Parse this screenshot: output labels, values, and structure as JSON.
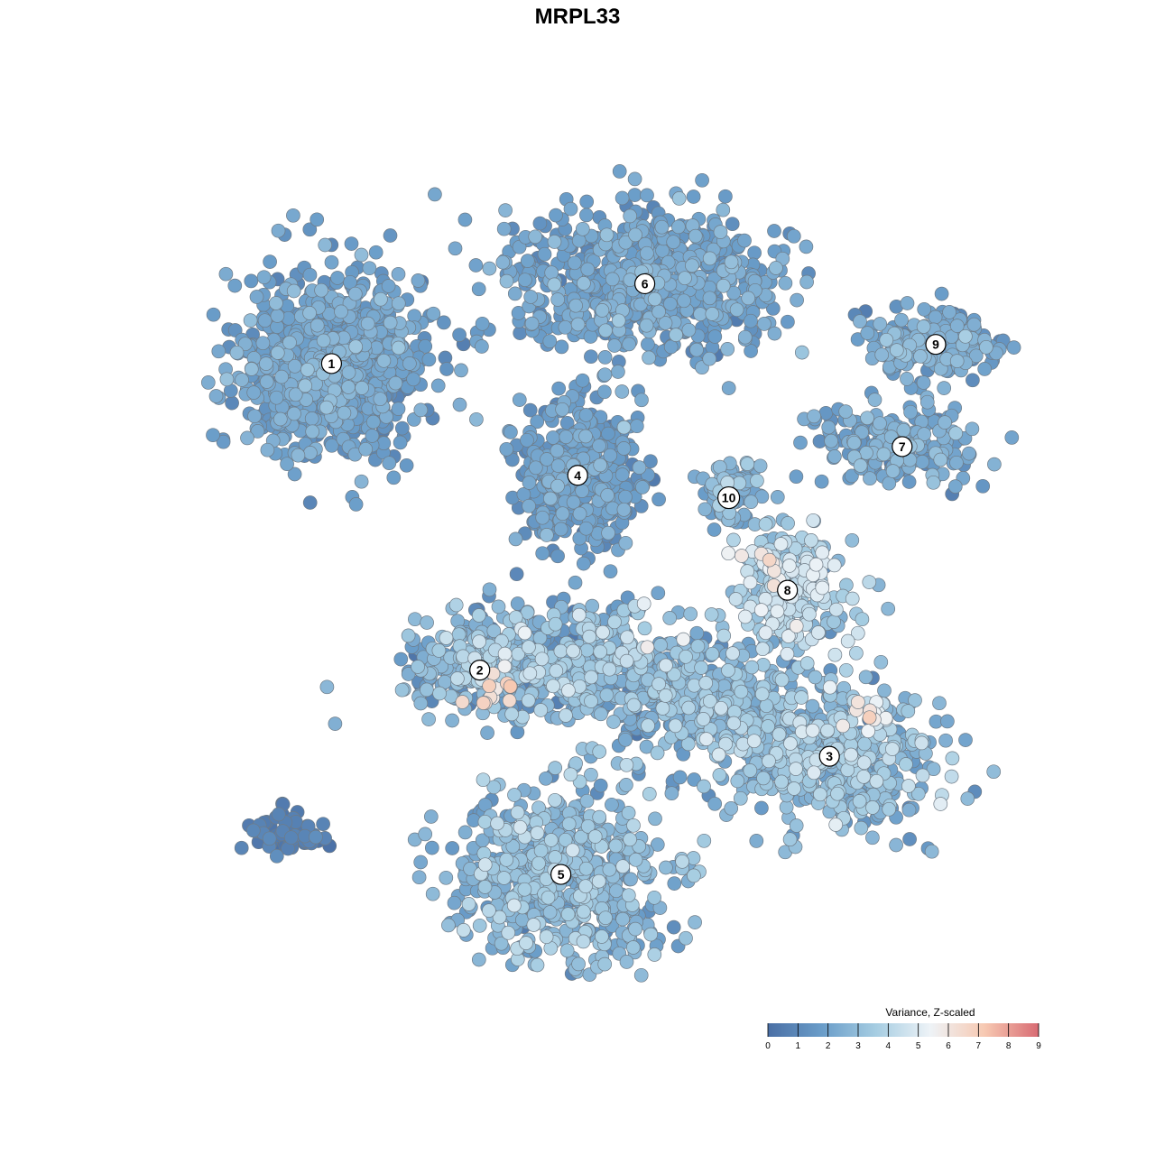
{
  "chart_data": {
    "type": "scatter",
    "title": "MRPL33",
    "xlabel": "",
    "ylabel": "",
    "grid": false,
    "legend_position": "bottom-right",
    "color_scale": {
      "title": "Variance, Z-scaled",
      "min": 0,
      "max": 9,
      "ticks": [
        "0",
        "1",
        "2",
        "3",
        "4",
        "5",
        "6",
        "7",
        "8",
        "9"
      ],
      "colors": [
        "#4a6fa5",
        "#6a9dc9",
        "#a6cde2",
        "#eef3f7",
        "#f7c9b2",
        "#d86b73"
      ]
    },
    "clusters": [
      {
        "label": "1",
        "x": -9.6,
        "y": 5.2,
        "sx": 2.6,
        "sy": 2.4,
        "n": 950,
        "mean": 1.8,
        "sd": 0.55,
        "highs": []
      },
      {
        "label": "2",
        "x": -4.3,
        "y": -4.4,
        "sx": 2.2,
        "sy": 1.0,
        "n": 230,
        "mean": 2.6,
        "sd": 0.9,
        "highs": [
          [
            -3.8,
            -5.1,
            6.5,
            12
          ]
        ]
      },
      {
        "label": "3",
        "x": 8.2,
        "y": -7.1,
        "sx": 3.1,
        "sy": 1.9,
        "n": 520,
        "mean": 2.8,
        "sd": 0.9,
        "highs": [
          [
            9.5,
            -5.8,
            5.6,
            14
          ]
        ]
      },
      {
        "label": "4",
        "x": -0.8,
        "y": 1.7,
        "sx": 1.9,
        "sy": 1.8,
        "n": 420,
        "mean": 1.7,
        "sd": 0.5,
        "highs": []
      },
      {
        "label": "5",
        "x": -1.4,
        "y": -10.8,
        "sx": 3.1,
        "sy": 2.2,
        "n": 650,
        "mean": 2.7,
        "sd": 0.75,
        "highs": []
      },
      {
        "label": "6",
        "x": 1.6,
        "y": 7.7,
        "sx": 4.2,
        "sy": 1.9,
        "n": 680,
        "mean": 1.9,
        "sd": 0.55,
        "highs": []
      },
      {
        "label": "7",
        "x": 10.8,
        "y": 2.6,
        "sx": 2.4,
        "sy": 1.0,
        "n": 230,
        "mean": 2.0,
        "sd": 0.6,
        "highs": []
      },
      {
        "label": "8",
        "x": 6.7,
        "y": -1.9,
        "sx": 1.7,
        "sy": 1.6,
        "n": 240,
        "mean": 3.6,
        "sd": 0.9,
        "highs": [
          [
            6.0,
            -1.2,
            5.8,
            10
          ]
        ]
      },
      {
        "label": "9",
        "x": 12.0,
        "y": 5.8,
        "sx": 2.2,
        "sy": 0.9,
        "n": 200,
        "mean": 2.0,
        "sd": 0.6,
        "highs": []
      },
      {
        "label": "10",
        "x": 4.6,
        "y": 1.0,
        "sx": 0.8,
        "sy": 1.1,
        "n": 90,
        "mean": 2.3,
        "sd": 0.6,
        "highs": []
      }
    ],
    "outlier_groups": [
      {
        "x": -11.2,
        "y": -9.5,
        "sx": 1.2,
        "sy": 0.5,
        "n": 60,
        "mean": 0.5,
        "sd": 0.3
      },
      {
        "x": -1.2,
        "y": -4.0,
        "sx": 3.5,
        "sy": 1.6,
        "n": 400,
        "mean": 2.6,
        "sd": 1.0
      },
      {
        "x": 3.4,
        "y": -5.4,
        "sx": 3.2,
        "sy": 1.6,
        "n": 420,
        "mean": 2.5,
        "sd": 0.9
      }
    ],
    "x_range": [
      -15,
      15
    ],
    "y_range": [
      -14.5,
      11.5
    ]
  }
}
